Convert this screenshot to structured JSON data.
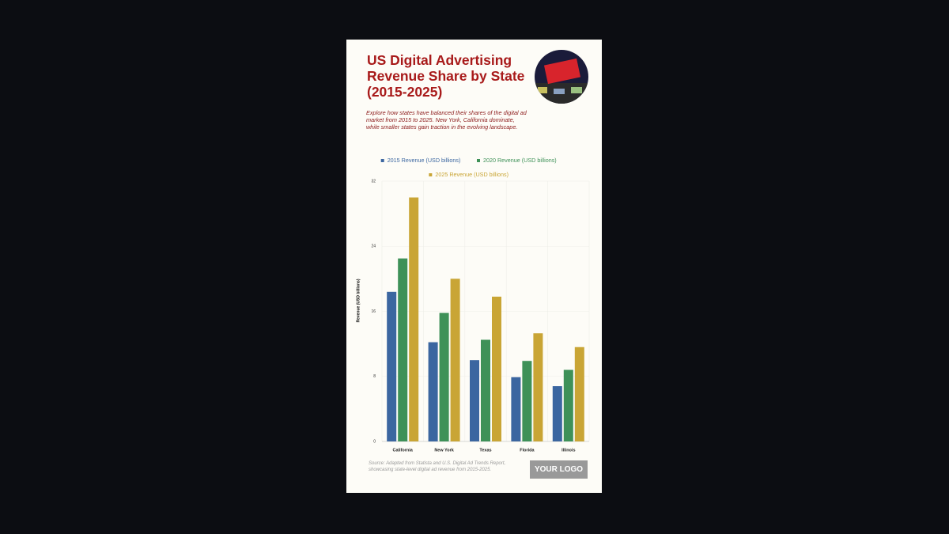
{
  "header": {
    "title": "US Digital Advertising Revenue Share by State (2015-2025)",
    "subtitle": "Explore how states have balanced their shares of the digital ad market from 2015 to 2025. New York, California dominate, while smaller states gain traction in the evolving landscape."
  },
  "chart_data": {
    "type": "bar",
    "categories": [
      "California",
      "New York",
      "Texas",
      "Florida",
      "Illinois"
    ],
    "series": [
      {
        "name": "2015 Revenue (USD billions)",
        "color": "#3b66a0",
        "values": [
          18.4,
          12.2,
          10.0,
          7.9,
          6.8
        ]
      },
      {
        "name": "2020 Revenue (USD billions)",
        "color": "#3e9158",
        "values": [
          22.5,
          15.8,
          12.5,
          9.9,
          8.8
        ]
      },
      {
        "name": "2025 Revenue (USD billions)",
        "color": "#c9a535",
        "values": [
          30.0,
          20.0,
          17.8,
          13.3,
          11.6
        ]
      }
    ],
    "y_label": "Revenue (USD billions)",
    "ylim": [
      0,
      32
    ],
    "yticks": [
      0,
      8,
      16,
      24,
      32
    ],
    "grid": true,
    "legend": "top"
  },
  "footer": {
    "source": "Source: Adapted from Statista and U.S. Digital Ad Trends Report, showcasing state-level digital ad revenue from 2015-2025.",
    "logo": "YOUR LOGO"
  }
}
